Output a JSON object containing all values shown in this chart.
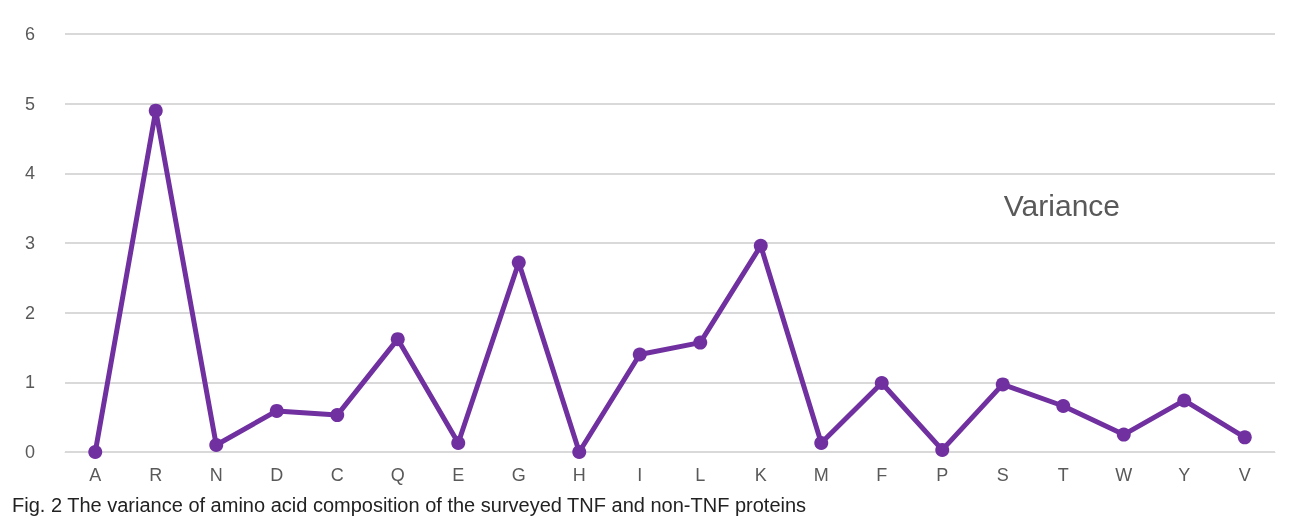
{
  "chart_data": {
    "type": "line",
    "categories": [
      "A",
      "R",
      "N",
      "D",
      "C",
      "Q",
      "E",
      "G",
      "H",
      "I",
      "L",
      "K",
      "M",
      "F",
      "P",
      "S",
      "T",
      "W",
      "Y",
      "V"
    ],
    "series": [
      {
        "name": "Variance",
        "color": "#7030a0",
        "values": [
          0,
          4.9,
          0.1,
          0.59,
          0.53,
          1.62,
          0.13,
          2.72,
          0,
          1.4,
          1.57,
          2.96,
          0.13,
          0.99,
          0.03,
          0.97,
          0.66,
          0.25,
          0.74,
          0.21
        ]
      }
    ],
    "ylim": [
      0,
      6
    ],
    "yticks": [
      0,
      1,
      2,
      3,
      4,
      5,
      6
    ],
    "grid": "y",
    "legend": "top right",
    "marker": "circle",
    "line_style": "solid",
    "annotations": [
      "Fig. 2 The variance of amino acid composition of the surveyed TNF and non-TNF proteins"
    ]
  }
}
